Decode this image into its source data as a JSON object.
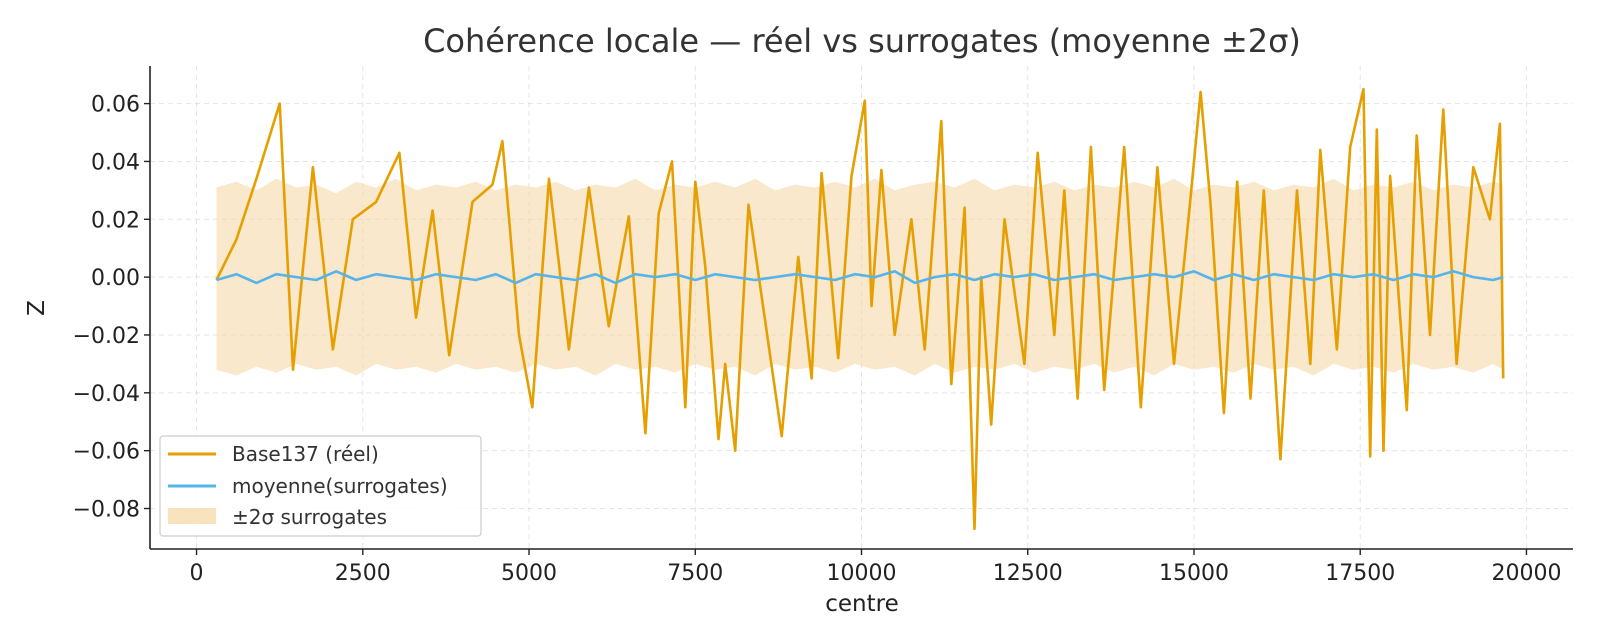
{
  "chart_data": {
    "type": "line",
    "title": "Cohérence locale — réel vs surrogates (moyenne ±2σ)",
    "xlabel": "centre",
    "ylabel": "Z",
    "xlim": [
      -700,
      20700
    ],
    "ylim": [
      -0.094,
      0.073
    ],
    "xticks": [
      0,
      2500,
      5000,
      7500,
      10000,
      12500,
      15000,
      17500,
      20000
    ],
    "xtick_labels": [
      "0",
      "2500",
      "5000",
      "7500",
      "10000",
      "12500",
      "15000",
      "17500",
      "20000"
    ],
    "yticks": [
      -0.08,
      -0.06,
      -0.04,
      -0.02,
      0.0,
      0.02,
      0.04,
      0.06
    ],
    "ytick_labels": [
      "−0.08",
      "−0.06",
      "−0.04",
      "−0.02",
      "0.00",
      "0.02",
      "0.04",
      "0.06"
    ],
    "grid": true,
    "legend_position": "lower-left",
    "colors": {
      "real": "#E69F00",
      "mean": "#56B4E9",
      "band": "#F5D9A8"
    },
    "series": [
      {
        "name": "Base137 (réel)",
        "kind": "line",
        "x": [
          300,
          600,
          900,
          1250,
          1450,
          1750,
          2050,
          2350,
          2700,
          3050,
          3300,
          3550,
          3800,
          4150,
          4450,
          4600,
          4850,
          5050,
          5300,
          5600,
          5900,
          6200,
          6500,
          6750,
          6950,
          7150,
          7350,
          7500,
          7650,
          7850,
          7950,
          8100,
          8300,
          8550,
          8800,
          9050,
          9250,
          9400,
          9650,
          9850,
          10050,
          10150,
          10300,
          10500,
          10750,
          10950,
          11200,
          11350,
          11550,
          11700,
          11800,
          11950,
          12150,
          12450,
          12650,
          12900,
          13050,
          13250,
          13450,
          13650,
          13950,
          14200,
          14450,
          14700,
          14950,
          15100,
          15250,
          15450,
          15650,
          15850,
          16050,
          16300,
          16550,
          16750,
          16900,
          17150,
          17350,
          17550,
          17650,
          17750,
          17850,
          17950,
          18200,
          18350,
          18550,
          18750,
          18950,
          19200,
          19450,
          19600,
          19650
        ],
        "values": [
          -0.001,
          0.013,
          0.034,
          0.06,
          -0.032,
          0.038,
          -0.025,
          0.02,
          0.026,
          0.043,
          -0.014,
          0.023,
          -0.027,
          0.026,
          0.032,
          0.047,
          -0.02,
          -0.045,
          0.034,
          -0.025,
          0.031,
          -0.017,
          0.021,
          -0.054,
          0.022,
          0.04,
          -0.045,
          0.033,
          0.004,
          -0.056,
          -0.03,
          -0.06,
          0.025,
          -0.015,
          -0.055,
          0.007,
          -0.035,
          0.036,
          -0.028,
          0.035,
          0.061,
          -0.01,
          0.037,
          -0.02,
          0.02,
          -0.025,
          0.054,
          -0.037,
          0.024,
          -0.087,
          0.0,
          -0.051,
          0.02,
          -0.03,
          0.043,
          -0.02,
          0.03,
          -0.042,
          0.045,
          -0.039,
          0.045,
          -0.045,
          0.038,
          -0.03,
          0.028,
          0.064,
          0.025,
          -0.047,
          0.033,
          -0.042,
          0.03,
          -0.063,
          0.03,
          -0.03,
          0.044,
          -0.025,
          0.045,
          0.065,
          -0.062,
          0.051,
          -0.06,
          0.035,
          -0.046,
          0.049,
          -0.02,
          0.058,
          -0.03,
          0.038,
          0.02,
          0.053,
          -0.035
        ]
      },
      {
        "name": "moyenne(surrogates)",
        "kind": "line",
        "x": [
          300,
          600,
          900,
          1200,
          1500,
          1800,
          2100,
          2400,
          2700,
          3000,
          3300,
          3600,
          3900,
          4200,
          4500,
          4800,
          5100,
          5400,
          5700,
          6000,
          6300,
          6600,
          6900,
          7200,
          7500,
          7800,
          8100,
          8400,
          8700,
          9000,
          9300,
          9600,
          9900,
          10200,
          10500,
          10800,
          11100,
          11400,
          11700,
          12000,
          12300,
          12600,
          12900,
          13200,
          13500,
          13800,
          14100,
          14400,
          14700,
          15000,
          15300,
          15600,
          15900,
          16200,
          16500,
          16800,
          17100,
          17400,
          17700,
          18000,
          18300,
          18600,
          18900,
          19200,
          19500,
          19650
        ],
        "values": [
          -0.001,
          0.001,
          -0.002,
          0.001,
          0.0,
          -0.001,
          0.002,
          -0.001,
          0.001,
          0.0,
          -0.001,
          0.001,
          0.0,
          -0.001,
          0.001,
          -0.002,
          0.001,
          0.0,
          -0.001,
          0.001,
          -0.002,
          0.001,
          0.0,
          0.001,
          -0.001,
          0.001,
          0.0,
          -0.001,
          0.0,
          0.001,
          0.0,
          -0.001,
          0.001,
          0.0,
          0.002,
          -0.002,
          0.0,
          0.001,
          -0.001,
          0.001,
          0.0,
          0.001,
          -0.001,
          0.0,
          0.001,
          -0.001,
          0.0,
          0.001,
          0.0,
          0.002,
          -0.001,
          0.001,
          -0.001,
          0.001,
          0.0,
          -0.001,
          0.001,
          0.0,
          0.001,
          -0.001,
          0.001,
          0.0,
          0.002,
          0.0,
          -0.001,
          0.0
        ]
      }
    ],
    "band": {
      "name": "±2σ surrogates",
      "x": [
        300,
        600,
        900,
        1200,
        1500,
        1800,
        2100,
        2400,
        2700,
        3000,
        3300,
        3600,
        3900,
        4200,
        4500,
        4800,
        5100,
        5400,
        5700,
        6000,
        6300,
        6600,
        6900,
        7200,
        7500,
        7800,
        8100,
        8400,
        8700,
        9000,
        9300,
        9600,
        9900,
        10200,
        10500,
        10800,
        11100,
        11400,
        11700,
        12000,
        12300,
        12600,
        12900,
        13200,
        13500,
        13800,
        14100,
        14400,
        14700,
        15000,
        15300,
        15600,
        15900,
        16200,
        16500,
        16800,
        17100,
        17400,
        17700,
        18000,
        18300,
        18600,
        18900,
        19200,
        19500,
        19650
      ],
      "upper": [
        0.031,
        0.033,
        0.03,
        0.034,
        0.031,
        0.032,
        0.029,
        0.033,
        0.031,
        0.034,
        0.03,
        0.032,
        0.031,
        0.033,
        0.03,
        0.032,
        0.031,
        0.033,
        0.03,
        0.032,
        0.031,
        0.034,
        0.03,
        0.032,
        0.031,
        0.033,
        0.031,
        0.034,
        0.03,
        0.032,
        0.031,
        0.033,
        0.031,
        0.034,
        0.03,
        0.032,
        0.033,
        0.031,
        0.034,
        0.03,
        0.032,
        0.031,
        0.033,
        0.03,
        0.032,
        0.031,
        0.033,
        0.031,
        0.034,
        0.03,
        0.032,
        0.031,
        0.033,
        0.03,
        0.032,
        0.031,
        0.034,
        0.03,
        0.032,
        0.031,
        0.033,
        0.03,
        0.032,
        0.031,
        0.033,
        0.032
      ],
      "lower": [
        -0.032,
        -0.034,
        -0.031,
        -0.033,
        -0.03,
        -0.032,
        -0.031,
        -0.034,
        -0.03,
        -0.032,
        -0.031,
        -0.033,
        -0.03,
        -0.032,
        -0.031,
        -0.033,
        -0.03,
        -0.032,
        -0.031,
        -0.034,
        -0.03,
        -0.032,
        -0.031,
        -0.033,
        -0.03,
        -0.032,
        -0.031,
        -0.034,
        -0.03,
        -0.032,
        -0.031,
        -0.033,
        -0.03,
        -0.032,
        -0.031,
        -0.034,
        -0.03,
        -0.033,
        -0.031,
        -0.032,
        -0.03,
        -0.033,
        -0.031,
        -0.032,
        -0.03,
        -0.033,
        -0.031,
        -0.034,
        -0.03,
        -0.032,
        -0.031,
        -0.033,
        -0.03,
        -0.032,
        -0.031,
        -0.034,
        -0.03,
        -0.032,
        -0.031,
        -0.033,
        -0.03,
        -0.032,
        -0.031,
        -0.033,
        -0.03,
        -0.032
      ]
    },
    "legend": [
      {
        "label": "Base137 (réel)",
        "kind": "line",
        "color": "#E69F00"
      },
      {
        "label": "moyenne(surrogates)",
        "kind": "line",
        "color": "#56B4E9"
      },
      {
        "label": "±2σ surrogates",
        "kind": "patch",
        "color": "#F5D9A8"
      }
    ]
  }
}
